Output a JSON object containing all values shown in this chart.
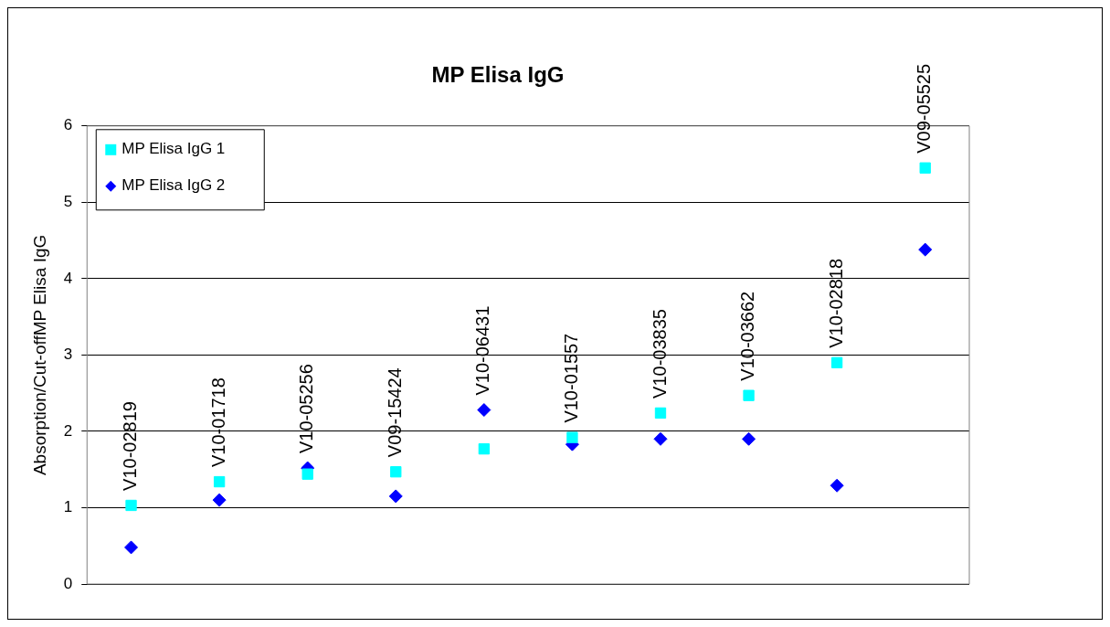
{
  "chart_data": {
    "type": "scatter",
    "title": "MP Elisa IgG",
    "ylabel": "Absorption/Cut-offMP Elisa IgG",
    "categories": [
      "V10-02819",
      "V10-01718",
      "V10-05256",
      "V09-15424",
      "V10-06431",
      "V10-01557",
      "V10-03835",
      "V10-03662",
      "V10-02818",
      "V09-05525"
    ],
    "series": [
      {
        "name": "MP Elisa IgG 1",
        "color": "#00ffff",
        "marker": "square",
        "values": [
          1.03,
          1.34,
          1.44,
          1.47,
          1.77,
          1.92,
          2.24,
          2.47,
          2.9,
          5.45
        ]
      },
      {
        "name": "MP Elisa IgG 2",
        "color": "#0000ff",
        "marker": "diamond",
        "values": [
          0.48,
          1.1,
          1.52,
          1.15,
          2.28,
          1.83,
          1.9,
          1.9,
          1.29,
          4.38
        ]
      }
    ],
    "ylim": [
      0,
      6
    ],
    "yticks": [
      0,
      1,
      2,
      3,
      4,
      5,
      6
    ],
    "grid": "y",
    "legend": "top left"
  }
}
